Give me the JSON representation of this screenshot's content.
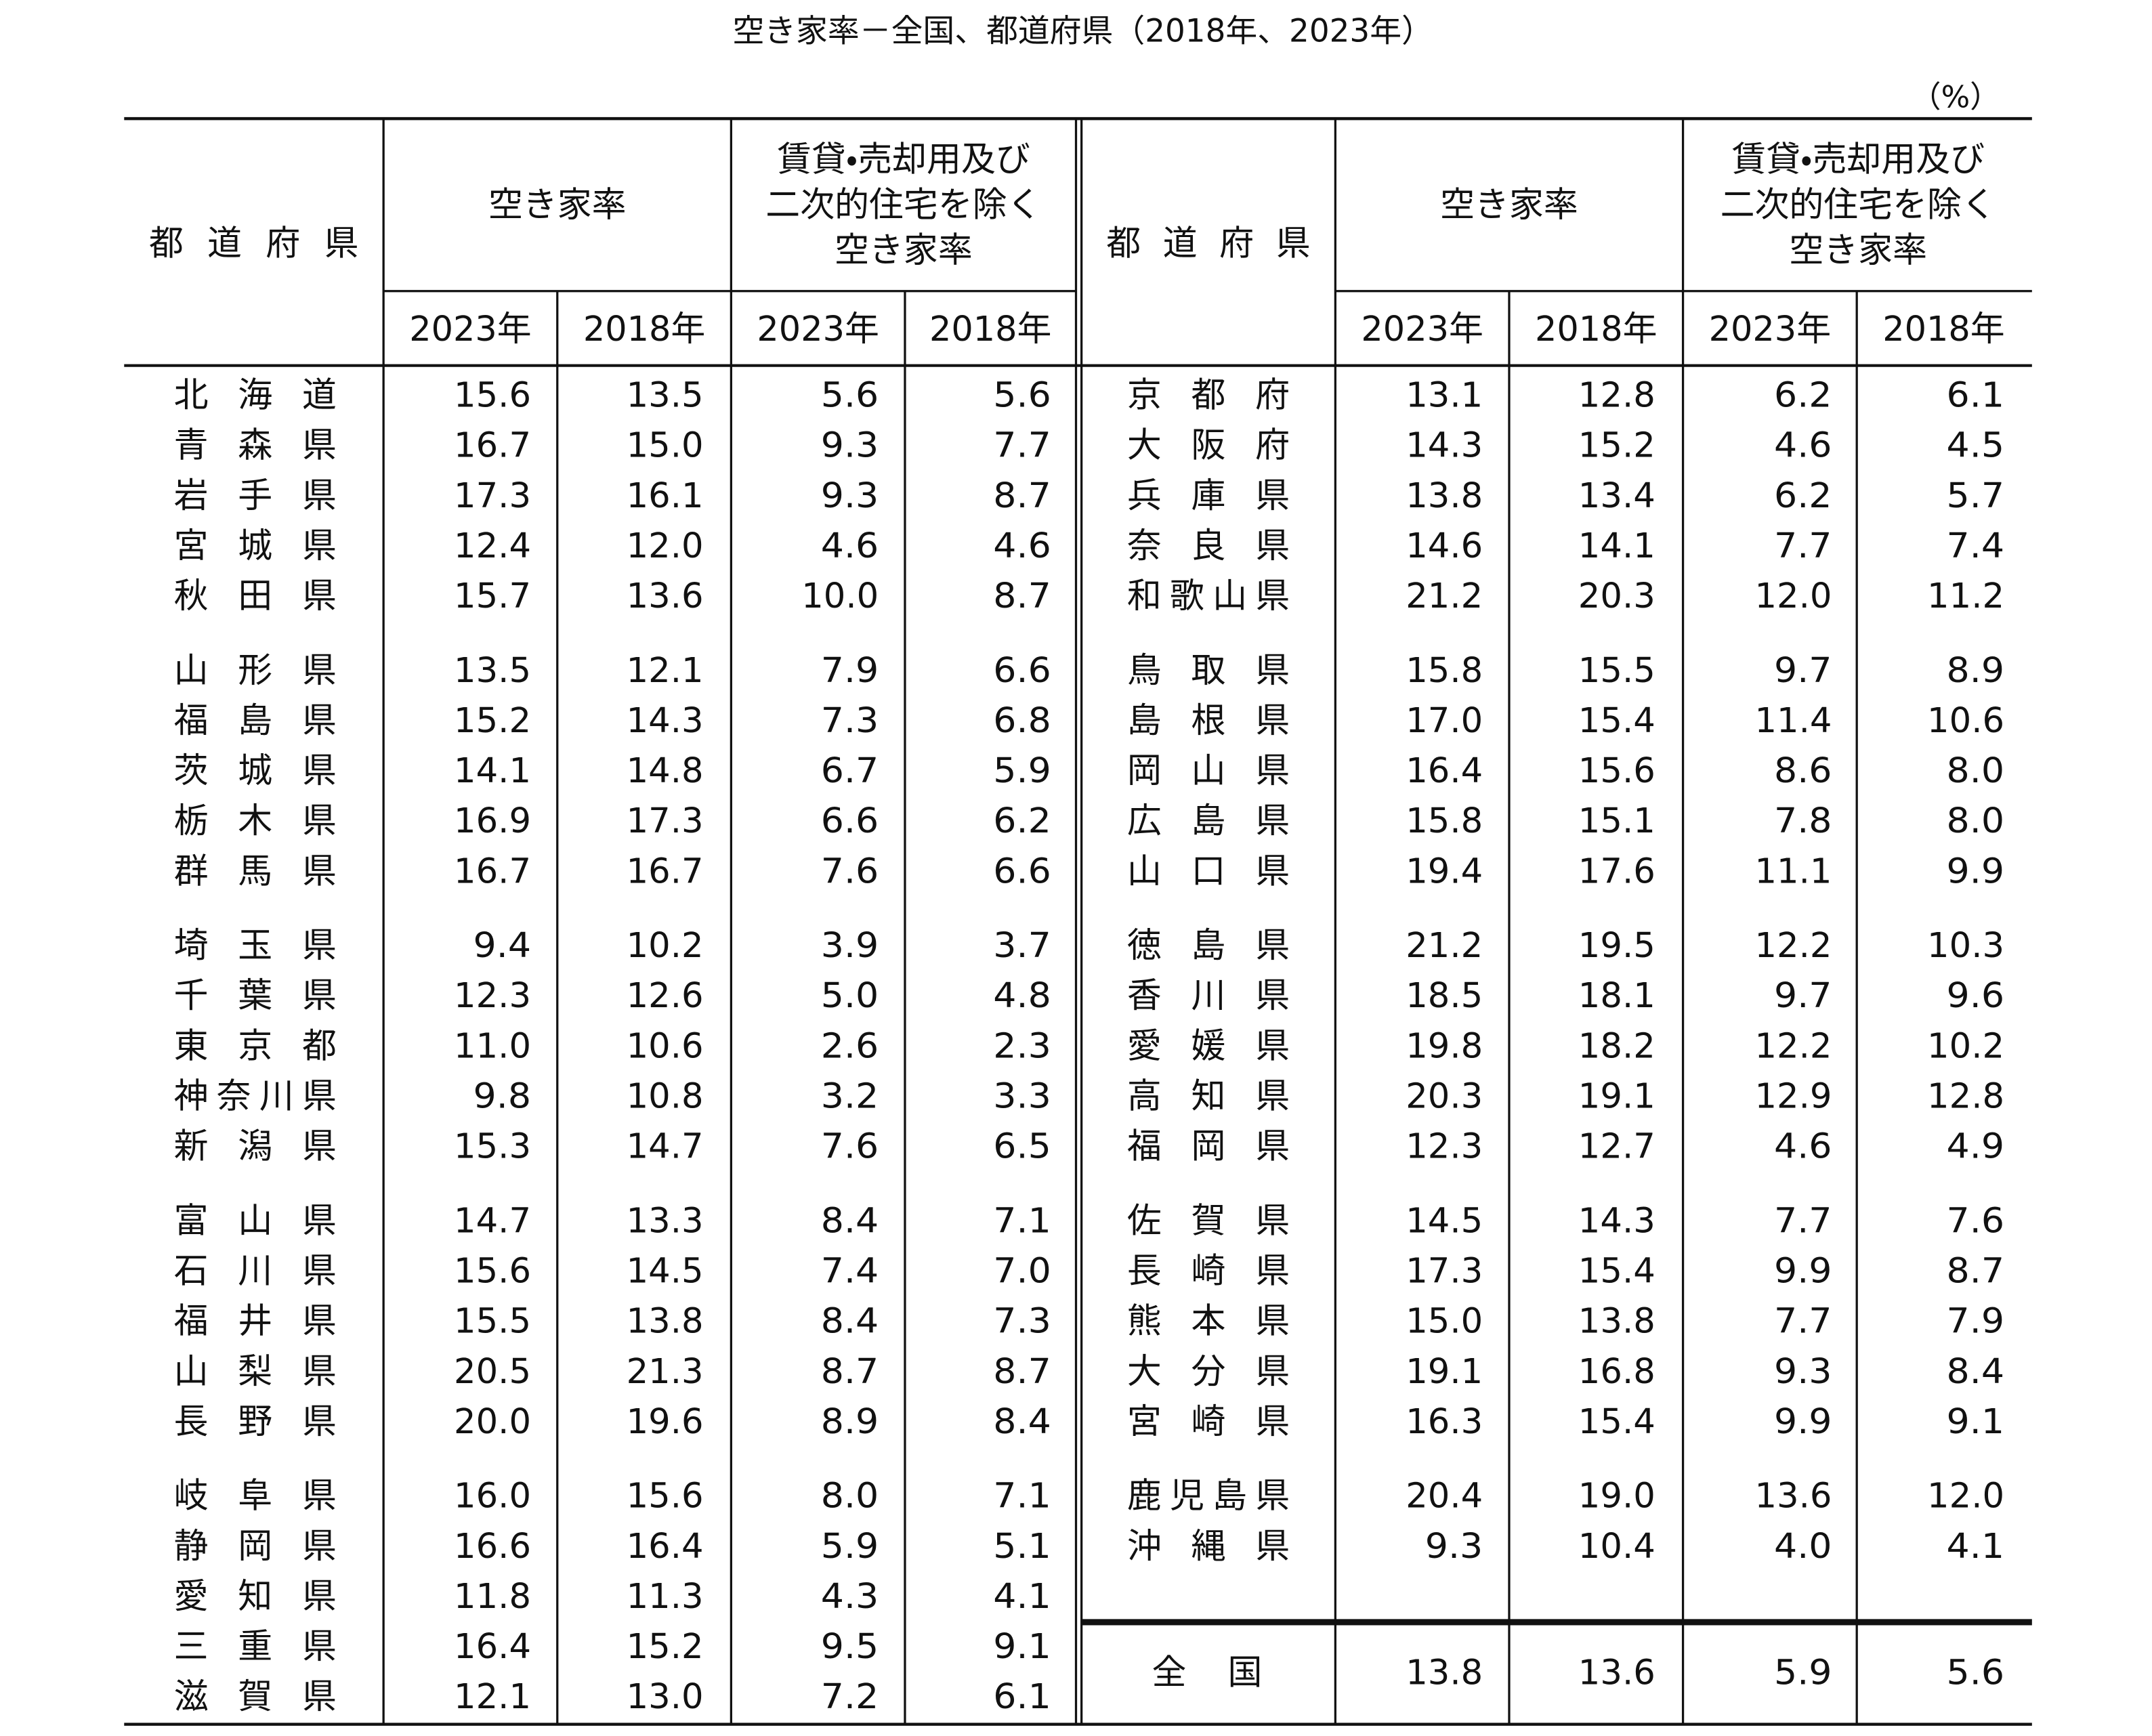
{
  "title": "空き家率－全国、都道府県（2018年、2023年）",
  "unit": "（%）",
  "header": {
    "prefecture": "都道府県",
    "vacancy_rate": "空き家率",
    "excluding_rate": [
      "賃貸・売却用及び",
      "二次的住宅を除く",
      "空き家率"
    ],
    "years": [
      "2023年",
      "2018年"
    ]
  },
  "left_rows": [
    [
      "北海道",
      "15.6",
      "13.5",
      "5.6",
      "5.6"
    ],
    [
      "青森県",
      "16.7",
      "15.0",
      "9.3",
      "7.7"
    ],
    [
      "岩手県",
      "17.3",
      "16.1",
      "9.3",
      "8.7"
    ],
    [
      "宮城県",
      "12.4",
      "12.0",
      "4.6",
      "4.6"
    ],
    [
      "秋田県",
      "15.7",
      "13.6",
      "10.0",
      "8.7"
    ],
    [
      "山形県",
      "13.5",
      "12.1",
      "7.9",
      "6.6"
    ],
    [
      "福島県",
      "15.2",
      "14.3",
      "7.3",
      "6.8"
    ],
    [
      "茨城県",
      "14.1",
      "14.8",
      "6.7",
      "5.9"
    ],
    [
      "栃木県",
      "16.9",
      "17.3",
      "6.6",
      "6.2"
    ],
    [
      "群馬県",
      "16.7",
      "16.7",
      "7.6",
      "6.6"
    ],
    [
      "埼玉県",
      "9.4",
      "10.2",
      "3.9",
      "3.7"
    ],
    [
      "千葉県",
      "12.3",
      "12.6",
      "5.0",
      "4.8"
    ],
    [
      "東京都",
      "11.0",
      "10.6",
      "2.6",
      "2.3"
    ],
    [
      "神奈川県",
      "9.8",
      "10.8",
      "3.2",
      "3.3"
    ],
    [
      "新潟県",
      "15.3",
      "14.7",
      "7.6",
      "6.5"
    ],
    [
      "富山県",
      "14.7",
      "13.3",
      "8.4",
      "7.1"
    ],
    [
      "石川県",
      "15.6",
      "14.5",
      "7.4",
      "7.0"
    ],
    [
      "福井県",
      "15.5",
      "13.8",
      "8.4",
      "7.3"
    ],
    [
      "山梨県",
      "20.5",
      "21.3",
      "8.7",
      "8.7"
    ],
    [
      "長野県",
      "20.0",
      "19.6",
      "8.9",
      "8.4"
    ],
    [
      "岐阜県",
      "16.0",
      "15.6",
      "8.0",
      "7.1"
    ],
    [
      "静岡県",
      "16.6",
      "16.4",
      "5.9",
      "5.1"
    ],
    [
      "愛知県",
      "11.8",
      "11.3",
      "4.3",
      "4.1"
    ],
    [
      "三重県",
      "16.4",
      "15.2",
      "9.5",
      "9.1"
    ],
    [
      "滋賀県",
      "12.1",
      "13.0",
      "7.2",
      "6.1"
    ]
  ],
  "right_rows": [
    [
      "京都府",
      "13.1",
      "12.8",
      "6.2",
      "6.1"
    ],
    [
      "大阪府",
      "14.3",
      "15.2",
      "4.6",
      "4.5"
    ],
    [
      "兵庫県",
      "13.8",
      "13.4",
      "6.2",
      "5.7"
    ],
    [
      "奈良県",
      "14.6",
      "14.1",
      "7.7",
      "7.4"
    ],
    [
      "和歌山県",
      "21.2",
      "20.3",
      "12.0",
      "11.2"
    ],
    [
      "鳥取県",
      "15.8",
      "15.5",
      "9.7",
      "8.9"
    ],
    [
      "島根県",
      "17.0",
      "15.4",
      "11.4",
      "10.6"
    ],
    [
      "岡山県",
      "16.4",
      "15.6",
      "8.6",
      "8.0"
    ],
    [
      "広島県",
      "15.8",
      "15.1",
      "7.8",
      "8.0"
    ],
    [
      "山口県",
      "19.4",
      "17.6",
      "11.1",
      "9.9"
    ],
    [
      "徳島県",
      "21.2",
      "19.5",
      "12.2",
      "10.3"
    ],
    [
      "香川県",
      "18.5",
      "18.1",
      "9.7",
      "9.6"
    ],
    [
      "愛媛県",
      "19.8",
      "18.2",
      "12.2",
      "10.2"
    ],
    [
      "高知県",
      "20.3",
      "19.1",
      "12.9",
      "12.8"
    ],
    [
      "福岡県",
      "12.3",
      "12.7",
      "4.6",
      "4.9"
    ],
    [
      "佐賀県",
      "14.5",
      "14.3",
      "7.7",
      "7.6"
    ],
    [
      "長崎県",
      "17.3",
      "15.4",
      "9.9",
      "8.7"
    ],
    [
      "熊本県",
      "15.0",
      "13.8",
      "7.7",
      "7.9"
    ],
    [
      "大分県",
      "19.1",
      "16.8",
      "9.3",
      "8.4"
    ],
    [
      "宮崎県",
      "16.3",
      "15.4",
      "9.9",
      "9.1"
    ],
    [
      "鹿児島県",
      "20.4",
      "19.0",
      "13.6",
      "12.0"
    ],
    [
      "沖縄県",
      "9.3",
      "10.4",
      "4.0",
      "4.1"
    ]
  ],
  "national": [
    "全国",
    "13.8",
    "13.6",
    "5.9",
    "5.6"
  ]
}
